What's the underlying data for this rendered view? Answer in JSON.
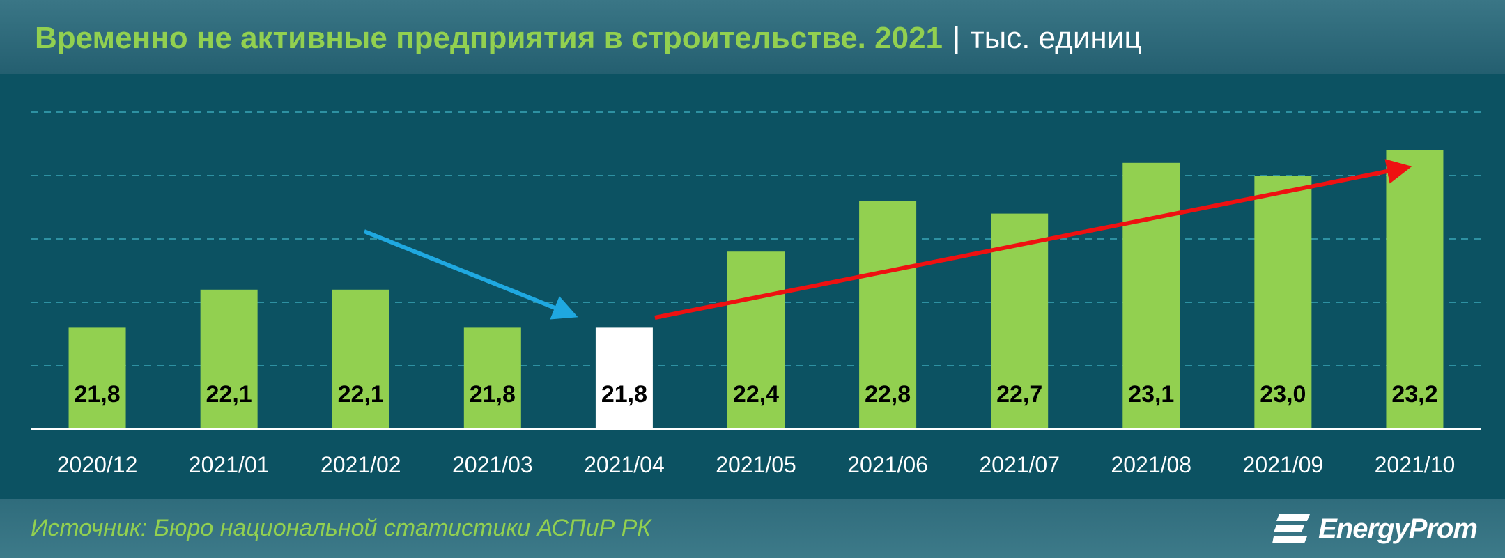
{
  "header": {
    "title": "Временно не активные предприятия в строительстве. 2021",
    "separator": "|",
    "unit": "тыс. единиц"
  },
  "footer": {
    "source": "Источник: Бюро национальной статистики АСПиР РК",
    "logo_text": "EnergyProm",
    "logo_icon": "energyprom-logo-icon"
  },
  "colors": {
    "bar": "#92d050",
    "highlight_bar": "#ffffff",
    "down_arrow": "#1fa8e0",
    "up_arrow": "#ee1111",
    "grid": "#3aa6b8",
    "background": "#0c5262"
  },
  "chart_data": {
    "type": "bar",
    "categories": [
      "2020/12",
      "2021/01",
      "2021/02",
      "2021/03",
      "2021/04",
      "2021/05",
      "2021/06",
      "2021/07",
      "2021/08",
      "2021/09",
      "2021/10"
    ],
    "values": [
      21.8,
      22.1,
      22.1,
      21.8,
      21.8,
      22.4,
      22.8,
      22.7,
      23.1,
      23.0,
      23.2
    ],
    "value_labels": [
      "21,8",
      "22,1",
      "22,1",
      "21,8",
      "21,8",
      "22,4",
      "22,8",
      "22,7",
      "23,1",
      "23,0",
      "23,2"
    ],
    "highlight_index": 4,
    "ylim": [
      21.0,
      23.5
    ],
    "grid": true,
    "annotations": [
      {
        "type": "arrow",
        "color": "down_arrow",
        "from": "2021/02",
        "to": "2021/04",
        "trend": "down"
      },
      {
        "type": "arrow",
        "color": "up_arrow",
        "from": "2021/04",
        "to": "2021/10",
        "trend": "up"
      }
    ]
  }
}
